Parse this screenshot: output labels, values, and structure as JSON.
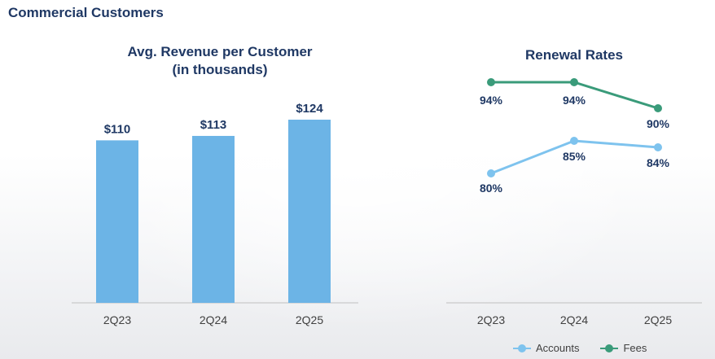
{
  "section_title": "Commercial Customers",
  "colors": {
    "bar": "#6cb4e6",
    "accounts": "#7ec3ee",
    "fees": "#3a9b7a",
    "label": "#1f3864",
    "axis_text": "#404040",
    "axis_line": "#bfbfbf"
  },
  "chart_data": [
    {
      "type": "bar",
      "title": "Avg. Revenue per Customer",
      "subtitle": "(in thousands)",
      "categories": [
        "2Q23",
        "2Q24",
        "2Q25"
      ],
      "values": [
        110,
        113,
        124
      ],
      "value_labels": [
        "$110",
        "$113",
        "$124"
      ],
      "ylim": [
        0,
        130
      ]
    },
    {
      "type": "line",
      "title": "Renewal Rates",
      "categories": [
        "2Q23",
        "2Q24",
        "2Q25"
      ],
      "ylim": [
        74,
        98
      ],
      "series": [
        {
          "name": "Accounts",
          "values": [
            80,
            85,
            84
          ],
          "labels": [
            "80%",
            "85%",
            "84%"
          ],
          "label_position": "below"
        },
        {
          "name": "Fees",
          "values": [
            94,
            94,
            90
          ],
          "labels": [
            "94%",
            "94%",
            "90%"
          ],
          "label_position": "below"
        }
      ],
      "legend": "bottom"
    }
  ]
}
